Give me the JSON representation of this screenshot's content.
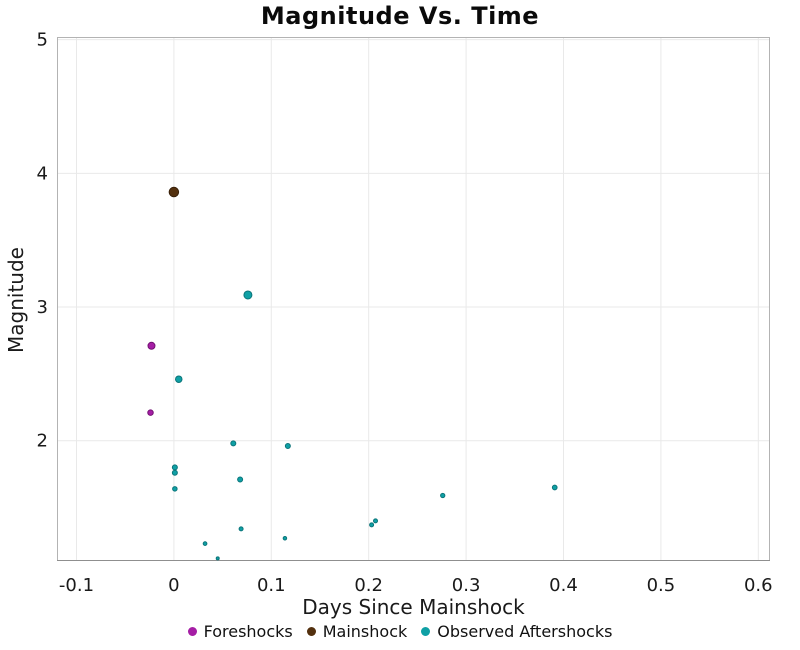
{
  "chart_data": {
    "type": "scatter",
    "title": "Magnitude Vs. Time",
    "xlabel": "Days Since Mainshock",
    "ylabel": "Magnitude",
    "xlim": [
      -0.12,
      0.612
    ],
    "ylim": [
      1.1,
      5.02
    ],
    "x_ticks": [
      -0.1,
      0,
      0.1,
      0.2,
      0.3,
      0.4,
      0.5,
      0.6
    ],
    "x_tick_labels": [
      "-0.1",
      "0",
      "0.1",
      "0.2",
      "0.3",
      "0.4",
      "0.5",
      "0.6"
    ],
    "y_ticks": [
      2,
      3,
      4,
      5
    ],
    "y_tick_labels": [
      "2",
      "3",
      "4",
      "5"
    ],
    "grid": true,
    "legend_position": "bottom-center",
    "series": [
      {
        "name": "Foreshocks",
        "color": "#A51EA5",
        "edge_color": "#731173",
        "z": 1,
        "points": [
          {
            "x": -0.023,
            "y": 2.71,
            "d": 7
          },
          {
            "x": -0.024,
            "y": 2.21,
            "d": 5.5
          }
        ]
      },
      {
        "name": "Mainshock",
        "color": "#53300E",
        "edge_color": "#38200A",
        "z": 2,
        "points": [
          {
            "x": 0.0,
            "y": 3.86,
            "d": 9.5
          }
        ]
      },
      {
        "name": "Observed Aftershocks",
        "color": "#0FA0A5",
        "edge_color": "#0B7479",
        "z": 0,
        "points": [
          {
            "x": 0.001,
            "y": 1.8,
            "d": 5
          },
          {
            "x": 0.001,
            "y": 1.76,
            "d": 5
          },
          {
            "x": 0.001,
            "y": 1.64,
            "d": 4.5
          },
          {
            "x": 0.005,
            "y": 2.46,
            "d": 6.5
          },
          {
            "x": 0.032,
            "y": 1.23,
            "d": 3.7
          },
          {
            "x": 0.045,
            "y": 1.12,
            "d": 3
          },
          {
            "x": 0.061,
            "y": 1.98,
            "d": 5
          },
          {
            "x": 0.068,
            "y": 1.71,
            "d": 5
          },
          {
            "x": 0.069,
            "y": 1.34,
            "d": 4
          },
          {
            "x": 0.076,
            "y": 3.09,
            "d": 8
          },
          {
            "x": 0.114,
            "y": 1.27,
            "d": 3.5
          },
          {
            "x": 0.117,
            "y": 1.96,
            "d": 5
          },
          {
            "x": 0.203,
            "y": 1.37,
            "d": 4
          },
          {
            "x": 0.207,
            "y": 1.4,
            "d": 4
          },
          {
            "x": 0.276,
            "y": 1.59,
            "d": 4.3
          },
          {
            "x": 0.391,
            "y": 1.65,
            "d": 4.7
          }
        ]
      }
    ],
    "style": {
      "grid_color": "#e9e9e9",
      "border_color": "#b3b3b3",
      "axis_line_color": "#8f8f8f",
      "tick_label_color": "#1a1a1a",
      "tick_font_size": 18
    }
  }
}
